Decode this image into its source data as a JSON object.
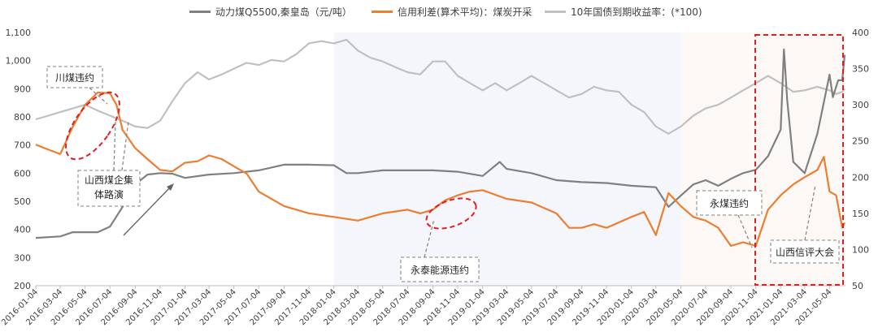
{
  "chart_data": {
    "type": "line",
    "title": "",
    "xlabel": "",
    "ylabel": "",
    "ylim_left": [
      200,
      1100
    ],
    "ylim_right": [
      50,
      400
    ],
    "y_ticks_left": [
      "200",
      "300",
      "400",
      "500",
      "600",
      "700",
      "800",
      "900",
      "1,000",
      "1,100"
    ],
    "y_ticks_right": [
      "50",
      "100",
      "150",
      "200",
      "250",
      "300",
      "350",
      "400"
    ],
    "x_ticks": [
      "2016-01-04",
      "2016-03-04",
      "2016-05-04",
      "2016-07-04",
      "2016-09-04",
      "2016-11-04",
      "2017-01-04",
      "2017-03-04",
      "2017-05-04",
      "2017-07-04",
      "2017-09-04",
      "2017-11-04",
      "2018-01-04",
      "2018-03-04",
      "2018-05-04",
      "2018-07-04",
      "2018-09-04",
      "2018-11-04",
      "2019-01-04",
      "2019-03-04",
      "2019-05-04",
      "2019-07-04",
      "2019-09-04",
      "2019-11-04",
      "2020-01-04",
      "2020-03-04",
      "2020-05-04",
      "2020-07-04",
      "2020-09-04",
      "2020-11-04",
      "2021-01-04",
      "2021-03-04",
      "2021-05-04"
    ],
    "grid": false,
    "legend_position": "top",
    "series": [
      {
        "name": "动力煤Q5500,秦皇岛（元/吨）",
        "axis": "left",
        "color": "#808080",
        "x": [
          "2016-01-04",
          "2016-03-04",
          "2016-04-04",
          "2016-06-04",
          "2016-07-04",
          "2016-08-04",
          "2016-09-04",
          "2016-10-04",
          "2016-11-04",
          "2016-12-04",
          "2017-01-04",
          "2017-03-04",
          "2017-05-04",
          "2017-07-04",
          "2017-09-04",
          "2017-11-04",
          "2018-01-04",
          "2018-02-04",
          "2018-03-04",
          "2018-05-04",
          "2018-07-04",
          "2018-09-04",
          "2018-11-04",
          "2019-01-04",
          "2019-02-15",
          "2019-03-04",
          "2019-05-04",
          "2019-07-04",
          "2019-09-04",
          "2019-11-04",
          "2020-01-04",
          "2020-03-04",
          "2020-04-04",
          "2020-05-04",
          "2020-06-04",
          "2020-07-04",
          "2020-08-04",
          "2020-09-04",
          "2020-10-04",
          "2020-11-04",
          "2020-12-04",
          "2021-01-04",
          "2021-01-12",
          "2021-01-20",
          "2021-02-04",
          "2021-03-04",
          "2021-04-04",
          "2021-05-04",
          "2021-05-12",
          "2021-05-25",
          "2021-06-04",
          "2021-06-10"
        ],
        "values": [
          370,
          375,
          390,
          390,
          410,
          480,
          560,
          595,
          600,
          598,
          583,
          595,
          600,
          610,
          630,
          630,
          628,
          600,
          600,
          610,
          610,
          610,
          605,
          590,
          640,
          615,
          600,
          575,
          568,
          565,
          555,
          550,
          480,
          520,
          560,
          575,
          555,
          580,
          600,
          612,
          660,
          755,
          1040,
          860,
          640,
          600,
          740,
          950,
          870,
          930,
          930,
          1020
        ]
      },
      {
        "name": "信用利差(算术平均)：煤炭开采",
        "axis": "right",
        "color": "#ED7D31",
        "x": [
          "2016-01-04",
          "2016-02-04",
          "2016-03-04",
          "2016-04-04",
          "2016-05-04",
          "2016-06-04",
          "2016-07-04",
          "2016-07-20",
          "2016-08-04",
          "2016-09-04",
          "2016-10-04",
          "2016-11-04",
          "2016-12-04",
          "2017-01-04",
          "2017-02-04",
          "2017-03-04",
          "2017-04-04",
          "2017-05-04",
          "2017-06-04",
          "2017-07-04",
          "2017-09-04",
          "2017-11-04",
          "2018-01-04",
          "2018-03-04",
          "2018-05-04",
          "2018-07-04",
          "2018-08-04",
          "2018-09-04",
          "2018-10-04",
          "2018-11-04",
          "2018-12-04",
          "2019-01-04",
          "2019-03-04",
          "2019-05-04",
          "2019-07-04",
          "2019-08-04",
          "2019-09-04",
          "2019-10-04",
          "2019-11-04",
          "2020-01-04",
          "2020-02-04",
          "2020-03-04",
          "2020-04-04",
          "2020-05-04",
          "2020-06-04",
          "2020-07-04",
          "2020-08-04",
          "2020-09-04",
          "2020-10-04",
          "2020-11-04",
          "2020-12-04",
          "2021-01-04",
          "2021-02-04",
          "2021-03-04",
          "2021-04-04",
          "2021-04-20",
          "2021-05-04",
          "2021-05-20",
          "2021-06-04",
          "2021-06-10"
        ],
        "values": [
          245,
          238,
          232,
          270,
          300,
          317,
          316,
          300,
          265,
          240,
          225,
          210,
          208,
          220,
          222,
          230,
          225,
          215,
          205,
          180,
          160,
          150,
          145,
          140,
          150,
          155,
          150,
          155,
          168,
          175,
          180,
          182,
          170,
          165,
          150,
          130,
          130,
          135,
          130,
          145,
          152,
          120,
          178,
          160,
          145,
          140,
          130,
          105,
          110,
          105,
          155,
          175,
          190,
          200,
          210,
          228,
          180,
          175,
          130,
          137
        ]
      },
      {
        "name": "10年国债到期收益率：(*100)",
        "axis": "right",
        "color": "#C0C0C0",
        "x": [
          "2016-01-04",
          "2016-02-04",
          "2016-03-04",
          "2016-04-04",
          "2016-05-04",
          "2016-06-04",
          "2016-07-04",
          "2016-08-04",
          "2016-09-04",
          "2016-10-04",
          "2016-11-04",
          "2016-12-04",
          "2017-01-04",
          "2017-02-04",
          "2017-03-04",
          "2017-04-04",
          "2017-05-04",
          "2017-06-04",
          "2017-07-04",
          "2017-08-04",
          "2017-09-04",
          "2017-10-04",
          "2017-11-04",
          "2017-12-04",
          "2018-01-04",
          "2018-02-04",
          "2018-03-04",
          "2018-04-04",
          "2018-05-04",
          "2018-06-04",
          "2018-07-04",
          "2018-08-04",
          "2018-09-04",
          "2018-10-04",
          "2018-11-04",
          "2018-12-04",
          "2019-01-04",
          "2019-02-04",
          "2019-03-04",
          "2019-04-04",
          "2019-05-04",
          "2019-06-04",
          "2019-07-04",
          "2019-08-04",
          "2019-09-04",
          "2019-10-04",
          "2019-11-04",
          "2019-12-04",
          "2020-01-04",
          "2020-02-04",
          "2020-03-04",
          "2020-04-04",
          "2020-05-04",
          "2020-06-04",
          "2020-07-04",
          "2020-08-04",
          "2020-09-04",
          "2020-10-04",
          "2020-11-04",
          "2020-12-04",
          "2021-01-04",
          "2021-02-04",
          "2021-03-04",
          "2021-04-04",
          "2021-05-04",
          "2021-05-20",
          "2021-06-04",
          "2021-06-10"
        ],
        "values": [
          280,
          285,
          290,
          295,
          300,
          292,
          285,
          278,
          270,
          268,
          278,
          305,
          330,
          345,
          335,
          342,
          350,
          358,
          355,
          362,
          360,
          370,
          385,
          388,
          385,
          390,
          375,
          365,
          360,
          352,
          345,
          342,
          360,
          360,
          340,
          330,
          320,
          330,
          320,
          330,
          340,
          330,
          320,
          310,
          315,
          325,
          320,
          318,
          300,
          290,
          270,
          260,
          270,
          285,
          295,
          300,
          310,
          320,
          330,
          340,
          330,
          318,
          320,
          325,
          320,
          315,
          318,
          322
        ]
      }
    ],
    "annotations": [
      {
        "text": "川煤违约"
      },
      {
        "text": "山西煤企集体路演"
      },
      {
        "text": "永泰能源违约"
      },
      {
        "text": "永煤违约"
      },
      {
        "text": "山西信评大会"
      }
    ]
  }
}
